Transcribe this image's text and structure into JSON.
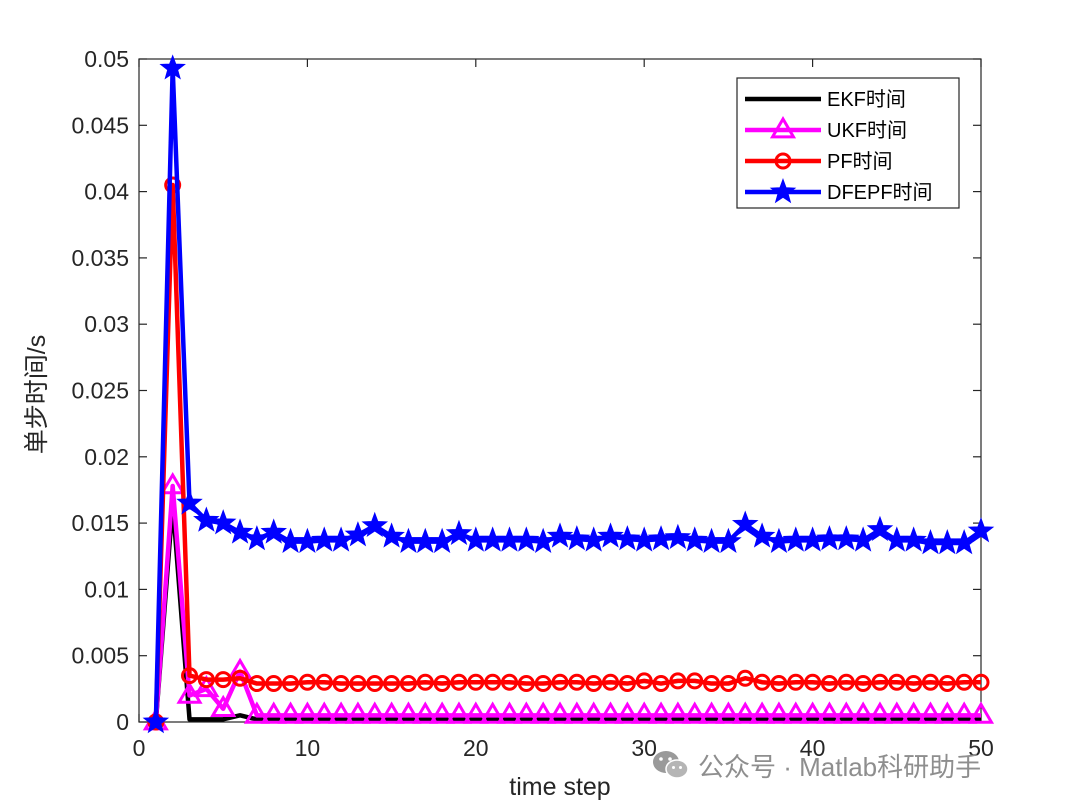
{
  "chart_data": {
    "type": "line",
    "xlabel": "time step",
    "ylabel": "单步时间/s",
    "xlim": [
      0,
      50
    ],
    "ylim": [
      0,
      0.05
    ],
    "xticks": [
      "0",
      "10",
      "20",
      "30",
      "40",
      "50"
    ],
    "yticks": [
      "0",
      "0.005",
      "0.01",
      "0.015",
      "0.02",
      "0.025",
      "0.03",
      "0.035",
      "0.04",
      "0.045",
      "0.05"
    ],
    "grid": false,
    "legend_position": "top-right",
    "x": [
      1,
      2,
      3,
      4,
      5,
      6,
      7,
      8,
      9,
      10,
      11,
      12,
      13,
      14,
      15,
      16,
      17,
      18,
      19,
      20,
      21,
      22,
      23,
      24,
      25,
      26,
      27,
      28,
      29,
      30,
      31,
      32,
      33,
      34,
      35,
      36,
      37,
      38,
      39,
      40,
      41,
      42,
      43,
      44,
      45,
      46,
      47,
      48,
      49,
      50
    ],
    "series": [
      {
        "name": "EKF时间",
        "color": "#000000",
        "marker": "none",
        "values": [
          0,
          0.0165,
          0.0002,
          0.0002,
          0.0002,
          0.0005,
          0.0002,
          0.0002,
          0.0002,
          0.0002,
          0.0002,
          0.0002,
          0.0002,
          0.0002,
          0.0002,
          0.0002,
          0.0002,
          0.0002,
          0.0002,
          0.0002,
          0.0002,
          0.0002,
          0.0002,
          0.0002,
          0.0002,
          0.0002,
          0.0002,
          0.0002,
          0.0002,
          0.0002,
          0.0002,
          0.0002,
          0.0002,
          0.0002,
          0.0002,
          0.0002,
          0.0002,
          0.0002,
          0.0002,
          0.0002,
          0.0002,
          0.0002,
          0.0002,
          0.0002,
          0.0002,
          0.0002,
          0.0002,
          0.0002,
          0.0002,
          0.0002
        ]
      },
      {
        "name": "UKF时间",
        "color": "#ff00ff",
        "marker": "triangle",
        "values": [
          0,
          0.0178,
          0.002,
          0.0025,
          0.001,
          0.0038,
          0.0005,
          0.0005,
          0.0005,
          0.0005,
          0.0005,
          0.0005,
          0.0005,
          0.0005,
          0.0005,
          0.0005,
          0.0005,
          0.0005,
          0.0005,
          0.0005,
          0.0005,
          0.0005,
          0.0005,
          0.0005,
          0.0005,
          0.0005,
          0.0005,
          0.0005,
          0.0005,
          0.0005,
          0.0005,
          0.0005,
          0.0005,
          0.0005,
          0.0005,
          0.0005,
          0.0005,
          0.0005,
          0.0005,
          0.0005,
          0.0005,
          0.0005,
          0.0005,
          0.0005,
          0.0005,
          0.0005,
          0.0005,
          0.0005,
          0.0005,
          0.0005
        ]
      },
      {
        "name": "PF时间",
        "color": "#ff0000",
        "marker": "circle",
        "values": [
          0,
          0.0405,
          0.0035,
          0.0032,
          0.0032,
          0.0033,
          0.0029,
          0.0029,
          0.0029,
          0.003,
          0.003,
          0.0029,
          0.0029,
          0.0029,
          0.0029,
          0.0029,
          0.003,
          0.0029,
          0.003,
          0.003,
          0.003,
          0.003,
          0.0029,
          0.0029,
          0.003,
          0.003,
          0.0029,
          0.003,
          0.0029,
          0.0031,
          0.0029,
          0.0031,
          0.0031,
          0.0029,
          0.0029,
          0.0033,
          0.003,
          0.0029,
          0.003,
          0.003,
          0.0029,
          0.003,
          0.0029,
          0.003,
          0.003,
          0.0029,
          0.003,
          0.0029,
          0.003,
          0.003
        ]
      },
      {
        "name": "DFEPF时间",
        "color": "#0000ff",
        "marker": "star",
        "values": [
          0,
          0.0493,
          0.0165,
          0.0152,
          0.015,
          0.0143,
          0.0138,
          0.0143,
          0.0136,
          0.0136,
          0.0137,
          0.0137,
          0.0141,
          0.0148,
          0.014,
          0.0136,
          0.0136,
          0.0136,
          0.0142,
          0.0137,
          0.0137,
          0.0137,
          0.0137,
          0.0136,
          0.014,
          0.0138,
          0.0137,
          0.014,
          0.0138,
          0.0137,
          0.0138,
          0.0139,
          0.0137,
          0.0136,
          0.0136,
          0.0149,
          0.014,
          0.0136,
          0.0137,
          0.0137,
          0.0138,
          0.0138,
          0.0137,
          0.0145,
          0.0137,
          0.0137,
          0.0135,
          0.0135,
          0.0135,
          0.0144
        ]
      }
    ]
  },
  "watermark": {
    "text": "公众号 · Matlab科研助手",
    "icon": "wechat-icon"
  }
}
